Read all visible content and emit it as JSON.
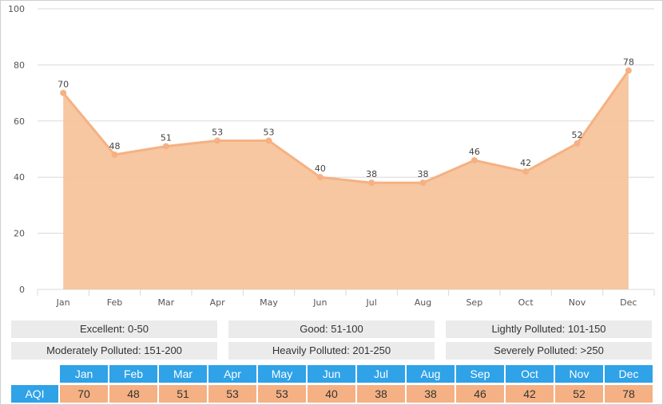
{
  "chart_data": {
    "type": "area",
    "categories": [
      "Jan",
      "Feb",
      "Mar",
      "Apr",
      "May",
      "Jun",
      "Jul",
      "Aug",
      "Sep",
      "Oct",
      "Nov",
      "Dec"
    ],
    "values": [
      70,
      48,
      51,
      53,
      53,
      40,
      38,
      38,
      46,
      42,
      52,
      78
    ],
    "ylim": [
      0,
      100
    ],
    "yticks": [
      0,
      20,
      40,
      60,
      80,
      100
    ],
    "title": "",
    "xlabel": "",
    "ylabel": "",
    "grid": true,
    "colors": {
      "line": "#f5b183",
      "fill": "#f5c49b",
      "grid": "#d9d9d9",
      "axis_text": "#555555"
    }
  },
  "legend": [
    {
      "label": "Excellent: 0-50"
    },
    {
      "label": "Good: 51-100"
    },
    {
      "label": "Lightly Polluted: 101-150"
    },
    {
      "label": "Moderately Polluted: 151-200"
    },
    {
      "label": "Heavily Polluted: 201-250"
    },
    {
      "label": "Severely Polluted: >250"
    }
  ],
  "table": {
    "row_label": "AQI",
    "header_color": "#2fa2e8",
    "value_color": "#f5b183"
  }
}
